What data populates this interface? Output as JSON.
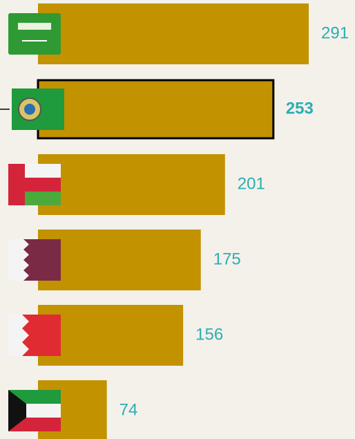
{
  "chart_data": {
    "type": "bar",
    "orientation": "horizontal",
    "values": [
      291,
      253,
      201,
      175,
      156,
      74
    ],
    "color": "#c29200",
    "label_color": "#2aaeb3",
    "highlight_index": 1
  }
}
